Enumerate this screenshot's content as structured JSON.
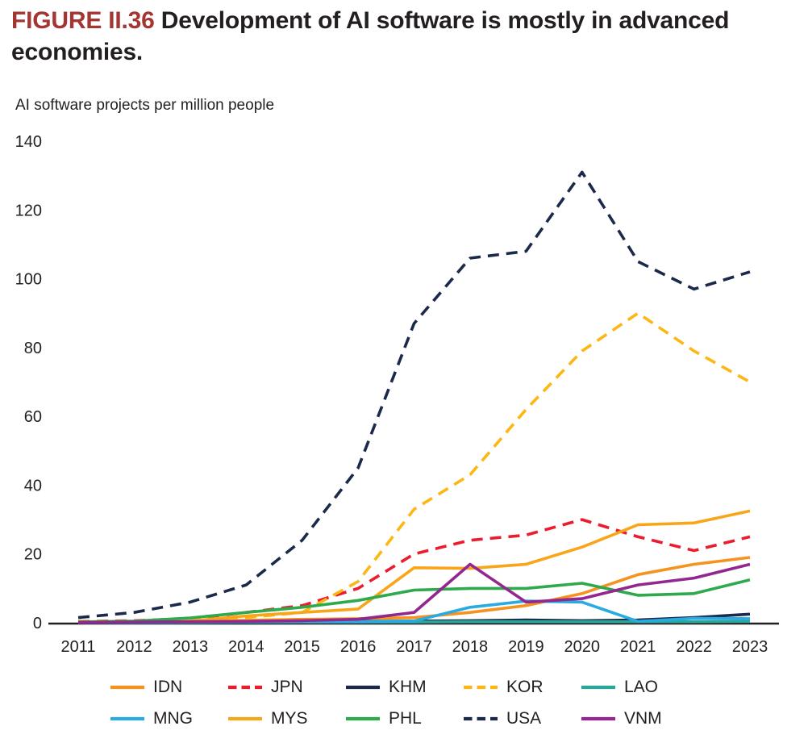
{
  "figure": {
    "number": "FIGURE II.36",
    "title": "Development of AI software is mostly in advanced economies.",
    "subtitle": "AI software projects per million people"
  },
  "colors": {
    "figure_number": "#A33532",
    "text": "#231F20",
    "axis_line": "#231F20"
  },
  "chart_data": {
    "type": "line",
    "x": [
      2011,
      2012,
      2013,
      2014,
      2015,
      2016,
      2017,
      2018,
      2019,
      2020,
      2021,
      2022,
      2023
    ],
    "ylim": [
      0,
      140
    ],
    "yticks": [
      0,
      20,
      40,
      60,
      80,
      100,
      120,
      140
    ],
    "grid": false,
    "legend_position": "bottom",
    "ylabel": "AI software projects per million people",
    "series": [
      {
        "name": "IDN",
        "color": "#F6921E",
        "dash": false,
        "values": [
          0.3,
          0.3,
          0.5,
          0.7,
          1.0,
          1.2,
          1.5,
          3.0,
          5.0,
          8.5,
          14.0,
          17.0,
          19.0
        ]
      },
      {
        "name": "JPN",
        "color": "#EB1C2D",
        "dash": true,
        "values": [
          0.4,
          0.6,
          1.2,
          3.0,
          5.0,
          10.0,
          20.0,
          24.0,
          25.5,
          30.0,
          25.0,
          21.0,
          25.0
        ]
      },
      {
        "name": "KHM",
        "color": "#1B2A4A",
        "dash": false,
        "values": [
          0.1,
          0.1,
          0.2,
          0.2,
          0.3,
          0.4,
          0.5,
          0.6,
          0.8,
          0.6,
          0.8,
          1.5,
          2.5
        ]
      },
      {
        "name": "KOR",
        "color": "#FDB714",
        "dash": true,
        "values": [
          0.3,
          0.5,
          0.8,
          1.5,
          3.0,
          12.0,
          33.0,
          43.0,
          62.0,
          79.0,
          90.0,
          79.0,
          70.0
        ]
      },
      {
        "name": "LAO",
        "color": "#2AA79B",
        "dash": false,
        "values": [
          0.1,
          0.1,
          0.1,
          0.2,
          0.2,
          0.2,
          0.2,
          0.3,
          0.3,
          0.3,
          0.3,
          0.3,
          0.4
        ]
      },
      {
        "name": "MNG",
        "color": "#29ABE2",
        "dash": false,
        "values": [
          0.1,
          0.1,
          0.2,
          0.2,
          0.3,
          0.3,
          0.5,
          4.5,
          6.3,
          6.0,
          0.4,
          1.3,
          1.2
        ]
      },
      {
        "name": "MYS",
        "color": "#F9A51A",
        "dash": false,
        "values": [
          0.2,
          0.3,
          0.5,
          2.0,
          3.0,
          4.0,
          16.0,
          15.8,
          17.0,
          22.0,
          28.5,
          29.0,
          32.5
        ]
      },
      {
        "name": "PHL",
        "color": "#2EA94B",
        "dash": false,
        "values": [
          0.2,
          0.5,
          1.4,
          3.0,
          4.5,
          6.5,
          9.5,
          10.0,
          10.0,
          11.5,
          8.0,
          8.5,
          12.5
        ]
      },
      {
        "name": "USA",
        "color": "#1B2A4A",
        "dash": true,
        "values": [
          1.5,
          3.0,
          6.0,
          11.0,
          24.0,
          45.0,
          87.0,
          106.0,
          108.0,
          131.0,
          105.0,
          97.0,
          102.0
        ]
      },
      {
        "name": "VNM",
        "color": "#92278F",
        "dash": false,
        "values": [
          0.1,
          0.2,
          0.3,
          0.4,
          0.6,
          1.0,
          3.0,
          17.0,
          6.0,
          7.0,
          11.0,
          13.0,
          17.0
        ]
      }
    ]
  }
}
